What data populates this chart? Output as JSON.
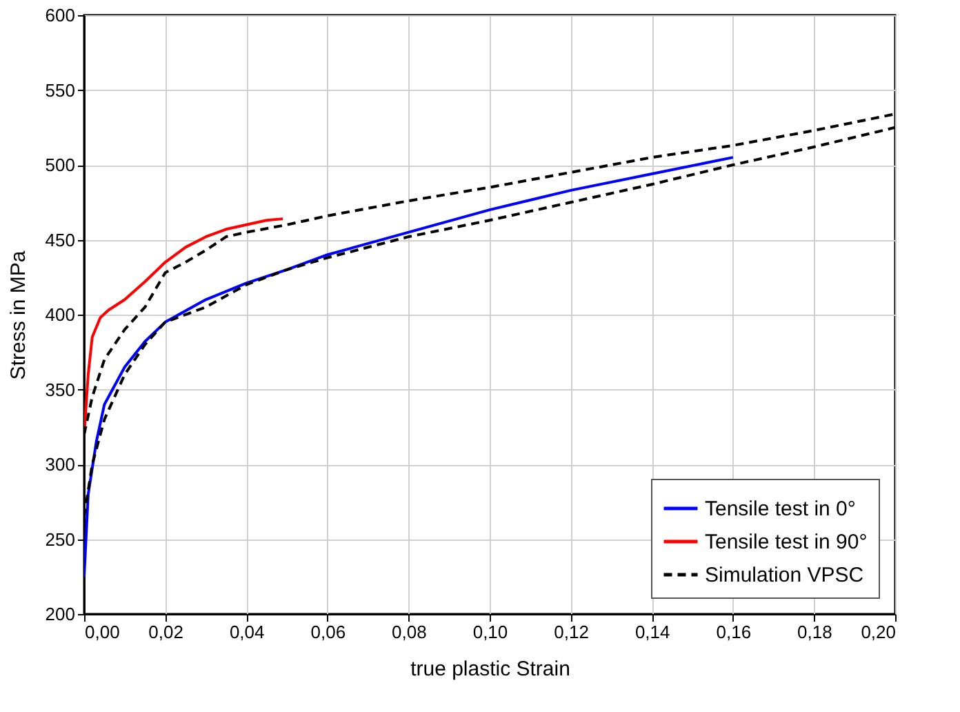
{
  "chart_data": {
    "type": "line",
    "xlabel": "true plastic Strain",
    "ylabel": "Stress in MPa",
    "xlim": [
      0,
      0.2
    ],
    "ylim": [
      200,
      600
    ],
    "xticks": [
      {
        "value": 0,
        "label": "0,00"
      },
      {
        "value": 0.02,
        "label": "0,02"
      },
      {
        "value": 0.04,
        "label": "0,04"
      },
      {
        "value": 0.06,
        "label": "0,06"
      },
      {
        "value": 0.08,
        "label": "0,08"
      },
      {
        "value": 0.1,
        "label": "0,10"
      },
      {
        "value": 0.12,
        "label": "0,12"
      },
      {
        "value": 0.14,
        "label": "0,14"
      },
      {
        "value": 0.16,
        "label": "0,16"
      },
      {
        "value": 0.18,
        "label": "0,18"
      },
      {
        "value": 0.2,
        "label": "0,20"
      }
    ],
    "yticks": [
      200,
      250,
      300,
      350,
      400,
      450,
      500,
      550,
      600
    ],
    "grid": true,
    "legend": "bottom right",
    "marker": "none",
    "series": [
      {
        "name": "Tensile test in 0°",
        "color": "#0000ff",
        "line_style": "solid",
        "x": [
          0,
          0.001,
          0.003,
          0.005,
          0.01,
          0.015,
          0.02,
          0.03,
          0.04,
          0.05,
          0.06,
          0.08,
          0.1,
          0.12,
          0.14,
          0.16
        ],
        "values": [
          225,
          280,
          315,
          340,
          365,
          382,
          395,
          410,
          421,
          430,
          440,
          455,
          470,
          483,
          494,
          505
        ]
      },
      {
        "name": "Tensile test in 90°",
        "color": "#ff0000",
        "line_style": "solid",
        "x": [
          0,
          0.001,
          0.002,
          0.004,
          0.006,
          0.01,
          0.015,
          0.02,
          0.025,
          0.03,
          0.035,
          0.04,
          0.045,
          0.049
        ],
        "values": [
          320,
          360,
          385,
          398,
          403,
          410,
          422,
          435,
          445,
          452,
          457,
          460,
          463,
          464
        ]
      },
      {
        "name": "Simulation VPSC",
        "color": "#000000",
        "line_style": "dashed",
        "x": [
          0,
          0.002,
          0.005,
          0.01,
          0.015,
          0.02,
          0.025,
          0.03,
          0.035,
          0.04,
          0.05,
          0.06,
          0.08,
          0.1,
          0.12,
          0.14,
          0.16,
          0.18,
          0.2
        ],
        "values": [
          320,
          345,
          370,
          390,
          405,
          428,
          435,
          443,
          452,
          455,
          460,
          466,
          476,
          485,
          495,
          505,
          513,
          523,
          534
        ]
      },
      {
        "color": "#000000",
        "line_style": "dashed",
        "x": [
          0,
          0.002,
          0.005,
          0.01,
          0.015,
          0.02,
          0.03,
          0.04,
          0.05,
          0.06,
          0.08,
          0.1,
          0.12,
          0.14,
          0.16,
          0.18,
          0.2
        ],
        "values": [
          265,
          300,
          330,
          360,
          380,
          395,
          405,
          420,
          430,
          438,
          452,
          463,
          475,
          487,
          500,
          512,
          525
        ]
      }
    ]
  }
}
